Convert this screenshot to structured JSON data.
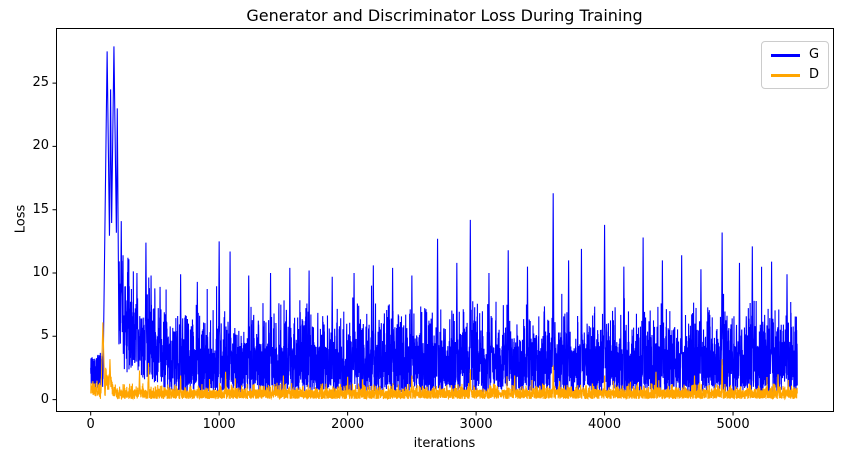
{
  "chart_data": {
    "type": "line",
    "title": "Generator and Discriminator Loss During Training",
    "xlabel": "iterations",
    "ylabel": "Loss",
    "grid": false,
    "background": "#ffffff",
    "frame_color": "#000000",
    "xlim": [
      -270,
      5778
    ],
    "ylim": [
      -0.9,
      29.35
    ],
    "xticks": [
      0,
      1000,
      2000,
      3000,
      4000,
      5000
    ],
    "yticks": [
      0,
      5,
      10,
      15,
      20,
      25
    ],
    "x_range": [
      0,
      5500
    ],
    "legend": {
      "position": "upper right",
      "entries": [
        {
          "label": "G",
          "color": "#0000ff"
        },
        {
          "label": "D",
          "color": "#ffa500"
        }
      ]
    },
    "series": [
      {
        "name": "G",
        "color": "#0000ff",
        "seed": 42,
        "band": {
          "start_iters": 115,
          "start_base": 0.7,
          "start_amp": 3.0,
          "base": 0.55,
          "amp": 3.7,
          "pow": 1.2,
          "mid_p": 0.35,
          "mid_amp": 3.8,
          "tall_p": 0.02,
          "tall_amp": 4.5,
          "decay_from": 200,
          "decay_to": 620,
          "decay_amp": 5.5,
          "min": 0.3
        },
        "spikes": [
          [
            128,
            27.5,
            34
          ],
          [
            155,
            24.5,
            18
          ],
          [
            181,
            27.9,
            36
          ],
          [
            207,
            23.0,
            16
          ],
          [
            238,
            14.1,
            10
          ],
          [
            290,
            11.2,
            8
          ],
          [
            360,
            10.0,
            7
          ],
          [
            430,
            12.4,
            8
          ],
          [
            470,
            9.8,
            6
          ],
          [
            540,
            8.9,
            6
          ],
          [
            700,
            9.9,
            6
          ],
          [
            830,
            9.3,
            6
          ],
          [
            1000,
            12.5,
            7
          ],
          [
            1085,
            11.7,
            6
          ],
          [
            1230,
            9.8,
            6
          ],
          [
            1400,
            10.0,
            6
          ],
          [
            1550,
            10.4,
            6
          ],
          [
            1700,
            10.2,
            6
          ],
          [
            1880,
            9.7,
            6
          ],
          [
            2050,
            10.0,
            6
          ],
          [
            2200,
            10.6,
            6
          ],
          [
            2350,
            10.4,
            6
          ],
          [
            2500,
            9.8,
            6
          ],
          [
            2700,
            12.7,
            7
          ],
          [
            2850,
            10.8,
            6
          ],
          [
            2955,
            14.2,
            7
          ],
          [
            3100,
            10.0,
            6
          ],
          [
            3250,
            11.8,
            6
          ],
          [
            3400,
            10.5,
            6
          ],
          [
            3600,
            16.3,
            7
          ],
          [
            3720,
            11.0,
            6
          ],
          [
            3820,
            11.9,
            6
          ],
          [
            4000,
            13.8,
            7
          ],
          [
            4150,
            10.5,
            6
          ],
          [
            4300,
            12.8,
            6
          ],
          [
            4450,
            11.0,
            6
          ],
          [
            4600,
            11.4,
            6
          ],
          [
            4750,
            10.3,
            6
          ],
          [
            4915,
            13.2,
            7
          ],
          [
            5050,
            10.8,
            6
          ],
          [
            5150,
            12.1,
            6
          ],
          [
            5300,
            10.9,
            6
          ],
          [
            5420,
            9.9,
            6
          ]
        ]
      },
      {
        "name": "D",
        "color": "#ffa500",
        "seed": 1337,
        "band": {
          "start_iters": 70,
          "start_base": 0.25,
          "start_amp": 1.3,
          "base": 0.05,
          "amp": 0.75,
          "pow": 1.1,
          "mid_p": 0.25,
          "mid_amp": 0.55,
          "tall_p": 0.015,
          "tall_amp": 1.1,
          "decay_from": 115,
          "decay_to": 200,
          "decay_amp": 1.8,
          "min": 0.03
        },
        "spikes": [
          [
            95,
            6.1,
            16
          ],
          [
            150,
            3.2,
            10
          ],
          [
            380,
            2.3,
            6
          ],
          [
            450,
            2.9,
            6
          ],
          [
            700,
            1.9,
            5
          ],
          [
            1050,
            2.2,
            5
          ],
          [
            1500,
            1.9,
            5
          ],
          [
            2000,
            1.8,
            5
          ],
          [
            2500,
            1.9,
            5
          ],
          [
            2955,
            2.4,
            6
          ],
          [
            3300,
            1.9,
            5
          ],
          [
            3600,
            2.7,
            6
          ],
          [
            4000,
            1.9,
            5
          ],
          [
            4400,
            2.2,
            5
          ],
          [
            4700,
            1.9,
            5
          ],
          [
            4915,
            3.2,
            6
          ],
          [
            5350,
            2.0,
            5
          ]
        ]
      }
    ]
  }
}
